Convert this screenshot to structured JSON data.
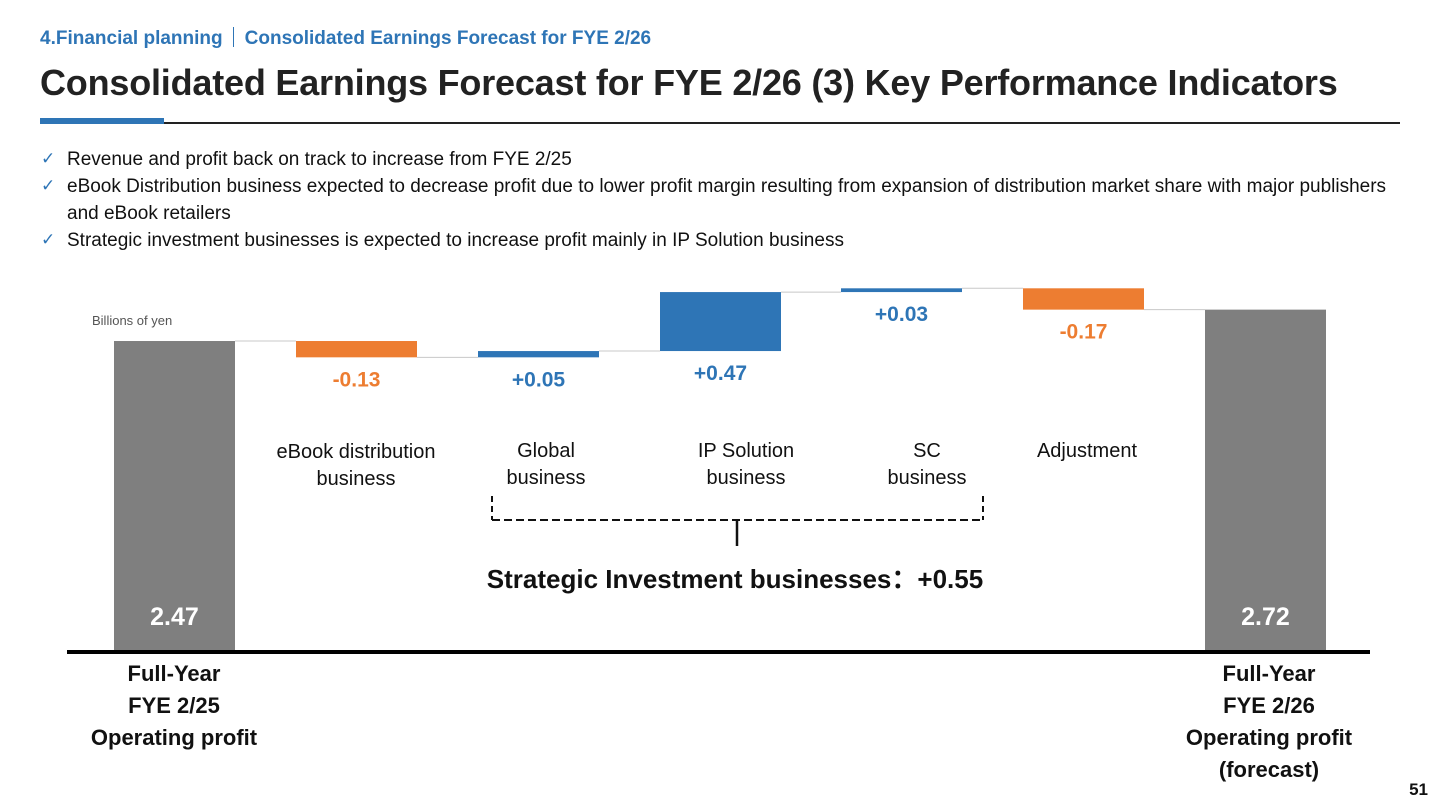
{
  "header": {
    "section": "4.Financial planning",
    "subsection": "Consolidated Earnings Forecast for FYE 2/26",
    "title": "Consolidated Earnings Forecast for FYE 2/26 (3) Key Performance Indicators"
  },
  "bullets": [
    "Revenue and profit back on track to increase from FYE 2/25",
    "eBook Distribution business expected to decrease profit due to lower profit margin resulting from expansion of distribution market share with major publishers and eBook retailers",
    "Strategic investment businesses is expected to increase profit mainly in IP Solution business"
  ],
  "icons": {
    "bullet": "check-icon"
  },
  "colors": {
    "accent": "#2e75b6",
    "increase": "#2e75b6",
    "decrease": "#ed7d31",
    "total": "#7f7f7f",
    "axis": "#000000"
  },
  "chart_data": {
    "type": "waterfall",
    "unit_label": "Billions of yen",
    "steps": [
      {
        "label_lines": [
          "Full-Year",
          "FYE 2/25",
          "Operating profit"
        ],
        "value": 2.47,
        "display": "2.47",
        "kind": "total"
      },
      {
        "label_lines": [
          "eBook distribution",
          "business"
        ],
        "value": -0.13,
        "display": "-0.13",
        "kind": "decrease"
      },
      {
        "label_lines": [
          "Global",
          "business"
        ],
        "value": 0.05,
        "display": "+0.05",
        "kind": "increase"
      },
      {
        "label_lines": [
          "IP Solution",
          "business"
        ],
        "value": 0.47,
        "display": "+0.47",
        "kind": "increase"
      },
      {
        "label_lines": [
          "SC",
          "business"
        ],
        "value": 0.03,
        "display": "+0.03",
        "kind": "increase"
      },
      {
        "label_lines": [
          "Adjustment"
        ],
        "value": -0.17,
        "display": "-0.17",
        "kind": "decrease"
      },
      {
        "label_lines": [
          "Full-Year",
          "FYE 2/26",
          "Operating profit",
          "(forecast)"
        ],
        "value": 2.72,
        "display": "2.72",
        "kind": "total"
      }
    ],
    "group": {
      "label": "Strategic Investment businesses：+0.55",
      "value": 0.55,
      "from_step": 2,
      "to_step": 4
    },
    "baseline": 0
  },
  "page_number": "51"
}
